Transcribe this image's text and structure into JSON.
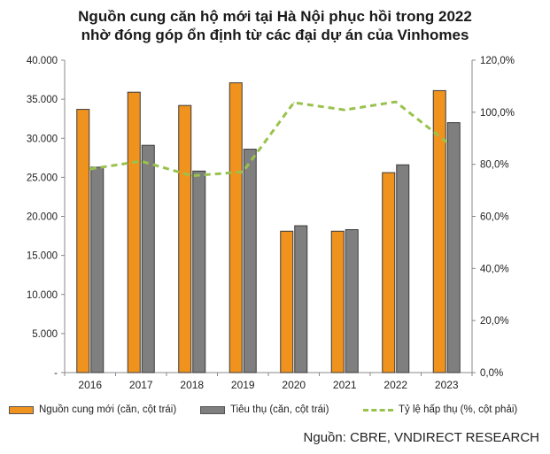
{
  "title_line1": "Nguồn cung căn hộ mới tại Hà Nội phục hồi trong 2022",
  "title_line2": "nhờ đóng góp ổn định từ các đại dự án của Vinhomes",
  "source": "Nguồn: CBRE, VNDIRECT RESEARCH",
  "colors": {
    "supply": "#f0921e",
    "sales": "#7f7f7f",
    "absorption": "#99c24d"
  },
  "chart_data": {
    "type": "bar",
    "categories": [
      "2016",
      "2017",
      "2018",
      "2019",
      "2020",
      "2021",
      "2022",
      "2023"
    ],
    "series": [
      {
        "name": "Nguồn cung mới (căn, cột trái)",
        "values": [
          33700,
          35900,
          34200,
          37100,
          18100,
          18100,
          25600,
          36100
        ],
        "axis": "left",
        "kind": "bar"
      },
      {
        "name": "Tiêu thụ (căn, cột trái)",
        "values": [
          26300,
          29100,
          25800,
          28600,
          18800,
          18300,
          26600,
          32000
        ],
        "axis": "left",
        "kind": "bar"
      },
      {
        "name": "Tỷ lệ hấp thụ (%, cột phải)",
        "values": [
          78.2,
          81.2,
          75.6,
          77.1,
          103.7,
          100.9,
          104.0,
          88.6
        ],
        "axis": "right",
        "kind": "line"
      }
    ],
    "ylim_left": [
      0,
      40000
    ],
    "ylim_right": [
      0,
      120
    ],
    "left_ticks": [
      "-",
      "5.000",
      "10.000",
      "15.000",
      "20.000",
      "25.000",
      "30.000",
      "35.000",
      "40.000"
    ],
    "right_ticks": [
      "0,0%",
      "20,0%",
      "40,0%",
      "60,0%",
      "80,0%",
      "100,0%",
      "120,0%"
    ],
    "legend_position": "bottom",
    "grid": false
  }
}
